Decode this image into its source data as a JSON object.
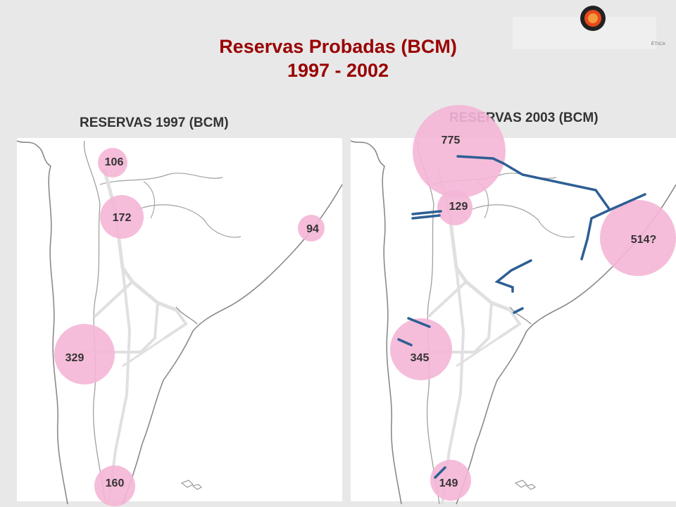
{
  "header": {
    "title_line1": "Reservas Probadas (BCM)",
    "title_line2": "1997 - 2002",
    "logo_text": "ÉTICA"
  },
  "colors": {
    "title": "#990000",
    "bubble": "#f4b6d6",
    "pipeline": "#2e5f94",
    "land_line": "#8a8a8a"
  },
  "maps": {
    "left": {
      "label": "RESERVAS 1997 (BCM)",
      "bubbles": [
        {
          "value": "106"
        },
        {
          "value": "172"
        },
        {
          "value": "94"
        },
        {
          "value": "329"
        },
        {
          "value": "160"
        }
      ]
    },
    "right": {
      "label": "RESERVAS 2003 (BCM)",
      "bubbles": [
        {
          "value": "775"
        },
        {
          "value": "129"
        },
        {
          "value": "514?"
        },
        {
          "value": "345"
        },
        {
          "value": "149"
        }
      ]
    }
  }
}
